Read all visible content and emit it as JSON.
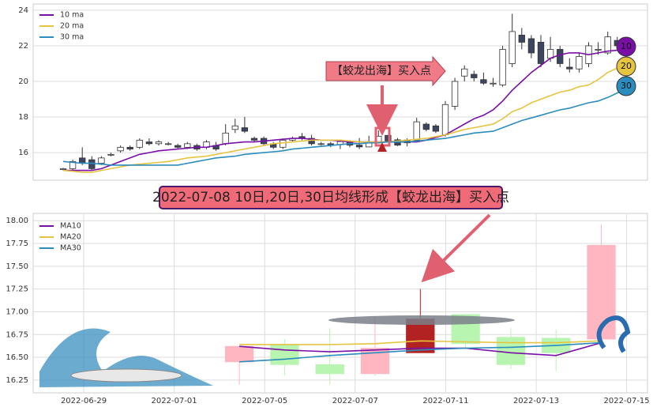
{
  "banner": "2022-07-08 10日,20日,30日均线形成【蛟龙出海】买入点",
  "chart_data": [
    {
      "type": "candlestick",
      "annotation": "【蛟龙出海】买入点",
      "end_labels": [
        "10",
        "20",
        "30"
      ],
      "up_color": "#ffffff",
      "down_color": "#3d4660",
      "open": [
        15.05,
        15.1,
        15.7,
        15.6,
        15.4,
        15.9,
        16.1,
        16.3,
        16.3,
        16.6,
        16.5,
        16.5,
        16.4,
        16.3,
        16.4,
        16.3,
        16.4,
        16.5,
        17.3,
        17.4,
        16.8,
        16.8,
        16.5,
        16.3,
        16.7,
        16.9,
        16.8,
        16.5,
        16.5,
        16.45,
        16.64,
        16.42,
        16.32,
        16.55,
        16.97,
        16.72,
        16.71,
        16.7,
        17.6,
        17.5,
        17.0,
        18.6,
        20.3,
        20.4,
        20.1,
        19.9,
        19.8,
        21.0,
        22.6,
        22.4,
        22.2,
        21.3,
        21.8,
        20.8,
        20.7,
        21.0,
        21.8,
        21.6,
        22.3,
        22.0
      ],
      "high": [
        15.15,
        15.6,
        16.3,
        15.8,
        15.8,
        16.0,
        16.4,
        16.4,
        16.8,
        16.8,
        16.7,
        16.6,
        16.5,
        16.6,
        16.5,
        16.7,
        16.6,
        17.6,
        17.9,
        18.0,
        16.9,
        16.9,
        16.6,
        16.8,
        16.9,
        17.1,
        17.0,
        16.6,
        16.6,
        16.62,
        16.7,
        16.82,
        16.95,
        17.25,
        16.97,
        16.82,
        16.8,
        17.96,
        17.7,
        17.6,
        18.9,
        20.2,
        20.9,
        20.6,
        20.5,
        20.2,
        22.0,
        23.8,
        23.0,
        22.6,
        22.6,
        22.5,
        22.0,
        21.3,
        21.6,
        22.2,
        22.2,
        22.8,
        22.5,
        22.1
      ],
      "low": [
        15.0,
        15.0,
        15.3,
        15.0,
        15.3,
        15.8,
        16.0,
        16.1,
        16.2,
        16.4,
        16.4,
        16.4,
        16.2,
        16.2,
        16.1,
        16.2,
        16.1,
        16.4,
        17.1,
        17.1,
        16.6,
        16.4,
        16.2,
        16.2,
        16.6,
        16.7,
        16.4,
        16.4,
        16.3,
        16.2,
        16.3,
        16.2,
        16.3,
        16.55,
        16.6,
        16.37,
        16.35,
        16.7,
        17.2,
        17.1,
        16.9,
        18.4,
        20.0,
        20.0,
        19.8,
        19.7,
        19.7,
        20.8,
        21.8,
        21.3,
        20.8,
        21.1,
        20.8,
        20.5,
        20.5,
        20.8,
        21.5,
        21.5,
        21.8,
        21.5
      ],
      "close": [
        15.1,
        15.5,
        15.4,
        15.1,
        15.7,
        15.9,
        16.3,
        16.2,
        16.7,
        16.5,
        16.6,
        16.5,
        16.3,
        16.5,
        16.2,
        16.6,
        16.2,
        17.1,
        17.5,
        17.2,
        16.7,
        16.5,
        16.3,
        16.7,
        16.8,
        16.8,
        16.5,
        16.5,
        16.4,
        16.62,
        16.42,
        16.32,
        16.6,
        16.92,
        16.65,
        16.42,
        16.55,
        17.73,
        17.3,
        17.2,
        18.7,
        20.0,
        20.7,
        20.2,
        19.9,
        19.9,
        21.8,
        22.8,
        22.2,
        21.6,
        21.0,
        21.8,
        21.0,
        20.7,
        21.4,
        22.0,
        21.8,
        22.5,
        22.0,
        21.7
      ],
      "series": [
        {
          "name": "10 ma",
          "color": "#7a0fa8",
          "values": [
            15.0,
            15.0,
            15.0,
            15.0,
            15.1,
            15.3,
            15.5,
            15.7,
            15.9,
            16.0,
            16.1,
            16.15,
            16.2,
            16.25,
            16.3,
            16.3,
            16.4,
            16.5,
            16.55,
            16.6,
            16.6,
            16.65,
            16.7,
            16.75,
            16.8,
            16.8,
            16.75,
            16.7,
            16.7,
            16.65,
            16.6,
            16.6,
            16.6,
            16.6,
            16.6,
            16.6,
            16.6,
            16.6,
            16.7,
            16.85,
            17.0,
            17.3,
            17.6,
            17.9,
            18.1,
            18.4,
            18.9,
            19.5,
            20.0,
            20.5,
            20.9,
            21.3,
            21.5,
            21.6,
            21.6,
            21.5,
            21.6,
            21.7,
            21.75,
            21.8
          ]
        },
        {
          "name": "20 ma",
          "color": "#e6c440",
          "values": [
            15.0,
            14.95,
            14.9,
            14.9,
            15.0,
            15.1,
            15.2,
            15.3,
            15.35,
            15.4,
            15.45,
            15.5,
            15.6,
            15.7,
            15.75,
            15.8,
            15.9,
            16.0,
            16.1,
            16.2,
            16.3,
            16.4,
            16.5,
            16.55,
            16.6,
            16.65,
            16.7,
            16.7,
            16.7,
            16.7,
            16.65,
            16.6,
            16.6,
            16.6,
            16.6,
            16.65,
            16.7,
            16.75,
            16.8,
            16.9,
            17.0,
            17.15,
            17.3,
            17.4,
            17.5,
            17.6,
            17.9,
            18.3,
            18.5,
            18.8,
            19.0,
            19.2,
            19.4,
            19.5,
            19.7,
            19.8,
            20.1,
            20.5,
            20.75,
            21.0
          ]
        },
        {
          "name": "30 ma",
          "color": "#2b8cbe",
          "values": [
            15.5,
            15.45,
            15.4,
            15.4,
            15.35,
            15.3,
            15.3,
            15.3,
            15.3,
            15.3,
            15.3,
            15.3,
            15.3,
            15.4,
            15.5,
            15.6,
            15.7,
            15.75,
            15.8,
            15.9,
            15.95,
            16.0,
            16.05,
            16.1,
            16.2,
            16.25,
            16.3,
            16.35,
            16.4,
            16.45,
            16.5,
            16.5,
            16.55,
            16.55,
            16.6,
            16.6,
            16.6,
            16.65,
            16.7,
            16.75,
            16.8,
            16.9,
            17.0,
            17.1,
            17.15,
            17.2,
            17.4,
            17.6,
            17.8,
            17.95,
            18.1,
            18.25,
            18.4,
            18.5,
            18.65,
            18.8,
            18.9,
            19.1,
            19.35,
            19.6
          ]
        }
      ],
      "ylim": [
        14.45,
        24.35
      ],
      "yticks": [
        16,
        18,
        20,
        22,
        24
      ],
      "grid": true,
      "legend": "upper left"
    },
    {
      "type": "candlestick",
      "categories": [
        "2022-06-29",
        null,
        "2022-07-01",
        null,
        "2022-07-05",
        null,
        "2022-07-07",
        null,
        "2022-07-11",
        null,
        "2022-07-13",
        null,
        "2022-07-15"
      ],
      "colors": [
        null,
        null,
        null,
        "#ffb6c1",
        "#b8f5b0",
        "#b8f5b0",
        "#ffb6c1",
        "#b22222",
        "#b8f5b0",
        "#b8f5b0",
        "#b8f5b0",
        "#ffb6c1",
        null
      ],
      "open": [
        null,
        null,
        null,
        16.45,
        16.64,
        16.42,
        16.32,
        16.55,
        16.97,
        16.72,
        16.71,
        16.7,
        null
      ],
      "high": [
        null,
        null,
        null,
        16.62,
        16.7,
        16.82,
        16.95,
        17.25,
        16.97,
        16.82,
        16.8,
        17.96,
        null
      ],
      "low": [
        null,
        null,
        null,
        16.2,
        16.3,
        16.2,
        16.3,
        16.55,
        16.6,
        16.37,
        16.35,
        16.7,
        null
      ],
      "close": [
        null,
        null,
        null,
        16.62,
        16.42,
        16.32,
        16.6,
        16.92,
        16.65,
        16.42,
        16.55,
        17.73,
        null
      ],
      "series": [
        {
          "name": "MA10",
          "color": "#7a0fa8",
          "values": [
            null,
            null,
            null,
            16.62,
            16.58,
            16.56,
            16.58,
            16.6,
            16.6,
            16.55,
            16.52,
            16.66,
            null
          ]
        },
        {
          "name": "MA20",
          "color": "#e6c440",
          "values": [
            null,
            null,
            null,
            16.64,
            16.64,
            16.64,
            16.65,
            16.68,
            16.67,
            16.66,
            16.66,
            16.68,
            null
          ]
        },
        {
          "name": "MA30",
          "color": "#2b8cbe",
          "values": [
            null,
            null,
            null,
            16.45,
            16.48,
            16.52,
            16.55,
            16.58,
            16.6,
            16.61,
            16.63,
            16.66,
            null
          ]
        }
      ],
      "ylim": [
        16.11,
        18.08
      ],
      "yticks": [
        {
          "value": 16.25,
          "label": "16.25"
        },
        {
          "value": 16.5,
          "label": "16.50"
        },
        {
          "value": 16.75,
          "label": "16.75"
        },
        {
          "value": 17,
          "label": "17.00"
        },
        {
          "value": 17.25,
          "label": "17.25"
        },
        {
          "value": 17.5,
          "label": "17.50"
        },
        {
          "value": 17.75,
          "label": "17.75"
        },
        {
          "value": 18,
          "label": "18.00"
        }
      ],
      "grid": true,
      "legend": "upper left"
    }
  ]
}
